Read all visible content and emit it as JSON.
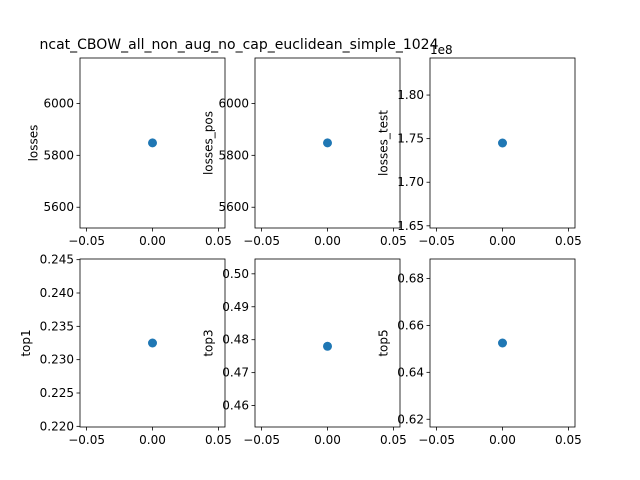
{
  "title": "ncat_CBOW_all_non_aug_no_cap_euclidean_simple_1024",
  "marker_color": "#1f77b4",
  "chart_data": [
    {
      "type": "scatter",
      "ylabel": "losses",
      "x": [
        0.0
      ],
      "y": [
        5848
      ],
      "xlim": [
        -0.055,
        0.055
      ],
      "ylim": [
        5520,
        6175
      ],
      "xticks": [
        -0.05,
        0.0,
        0.05
      ],
      "xtick_labels": [
        "−0.05",
        "0.00",
        "0.05"
      ],
      "yticks": [
        5600,
        5800,
        6000
      ],
      "ytick_labels": [
        "5600",
        "5800",
        "6000"
      ],
      "offset_text": ""
    },
    {
      "type": "scatter",
      "ylabel": "losses_pos",
      "x": [
        0.0
      ],
      "y": [
        5848
      ],
      "xlim": [
        -0.055,
        0.055
      ],
      "ylim": [
        5520,
        6175
      ],
      "xticks": [
        -0.05,
        0.0,
        0.05
      ],
      "xtick_labels": [
        "−0.05",
        "0.00",
        "0.05"
      ],
      "yticks": [
        5600,
        5800,
        6000
      ],
      "ytick_labels": [
        "5600",
        "5800",
        "6000"
      ],
      "offset_text": ""
    },
    {
      "type": "scatter",
      "ylabel": "losses_test",
      "x": [
        0.0
      ],
      "y": [
        1.745
      ],
      "xlim": [
        -0.055,
        0.055
      ],
      "ylim": [
        1.6475,
        1.8425
      ],
      "xticks": [
        -0.05,
        0.0,
        0.05
      ],
      "xtick_labels": [
        "−0.05",
        "0.00",
        "0.05"
      ],
      "yticks": [
        1.65,
        1.7,
        1.75,
        1.8
      ],
      "ytick_labels": [
        "1.65",
        "1.70",
        "1.75",
        "1.80"
      ],
      "offset_text": "1e8"
    },
    {
      "type": "scatter",
      "ylabel": "top1",
      "x": [
        0.0
      ],
      "y": [
        0.2325
      ],
      "xlim": [
        -0.055,
        0.055
      ],
      "ylim": [
        0.2199,
        0.2451
      ],
      "xticks": [
        -0.05,
        0.0,
        0.05
      ],
      "xtick_labels": [
        "−0.05",
        "0.00",
        "0.05"
      ],
      "yticks": [
        0.22,
        0.225,
        0.23,
        0.235,
        0.24,
        0.245
      ],
      "ytick_labels": [
        "0.220",
        "0.225",
        "0.230",
        "0.235",
        "0.240",
        "0.245"
      ],
      "offset_text": ""
    },
    {
      "type": "scatter",
      "ylabel": "top3",
      "x": [
        0.0
      ],
      "y": [
        0.478
      ],
      "xlim": [
        -0.055,
        0.055
      ],
      "ylim": [
        0.4535,
        0.5045
      ],
      "xticks": [
        -0.05,
        0.0,
        0.05
      ],
      "xtick_labels": [
        "−0.05",
        "0.00",
        "0.05"
      ],
      "yticks": [
        0.46,
        0.47,
        0.48,
        0.49,
        0.5
      ],
      "ytick_labels": [
        "0.46",
        "0.47",
        "0.48",
        "0.49",
        "0.50"
      ],
      "offset_text": ""
    },
    {
      "type": "scatter",
      "ylabel": "top5",
      "x": [
        0.0
      ],
      "y": [
        0.6525
      ],
      "xlim": [
        -0.055,
        0.055
      ],
      "ylim": [
        0.6167,
        0.6883
      ],
      "xticks": [
        -0.05,
        0.0,
        0.05
      ],
      "xtick_labels": [
        "−0.05",
        "0.00",
        "0.05"
      ],
      "yticks": [
        0.62,
        0.64,
        0.66,
        0.68
      ],
      "ytick_labels": [
        "0.62",
        "0.64",
        "0.66",
        "0.68"
      ],
      "offset_text": ""
    }
  ]
}
